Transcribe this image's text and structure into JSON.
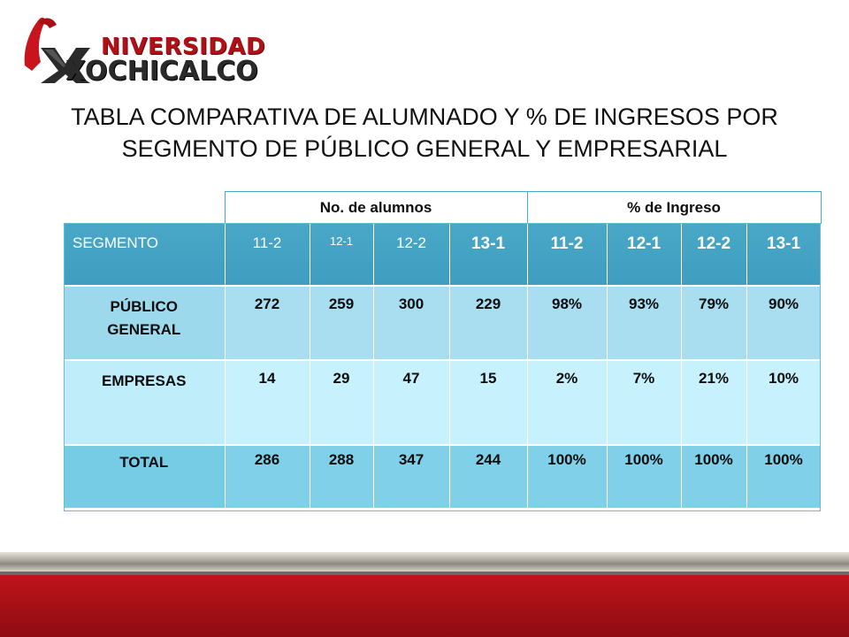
{
  "logo": {
    "line1": "NIVERSIDAD",
    "line2": "XOCHICALCO",
    "colors": {
      "red": "#b01016",
      "dark": "#2a2a2a"
    }
  },
  "title": {
    "line1": "TABLA COMPARATIVA DE ALUMNADO Y % DE INGRESOS POR",
    "line2": "SEGMENTO DE PÚBLICO GENERAL Y EMPRESARIAL"
  },
  "table": {
    "group_headers": [
      "No. de alumnos",
      "% de Ingreso"
    ],
    "columns": [
      "SEGMENTO",
      "11-2",
      "12-1",
      "12-2",
      "13-1",
      "11-2",
      "12-1",
      "12-2",
      "13-1"
    ],
    "rows": [
      {
        "segment": "PÚBLICO GENERAL",
        "values": [
          "272",
          "259",
          "300",
          "229",
          "98%",
          "93%",
          "79%",
          "90%"
        ]
      },
      {
        "segment": "EMPRESAS",
        "values": [
          "14",
          "29",
          "47",
          "15",
          "2%",
          "7%",
          "21%",
          "10%"
        ]
      },
      {
        "segment": "TOTAL",
        "values": [
          "286",
          "288",
          "347",
          "244",
          "100%",
          "100%",
          "100%",
          "100%"
        ]
      }
    ],
    "colors": {
      "header": "#49a7c6",
      "row1": "#a8def0",
      "row2": "#c7f1fc",
      "row3": "#7fd0e8"
    }
  },
  "footer_colors": {
    "gray": "#a8a49b",
    "red": "#b0121a"
  }
}
